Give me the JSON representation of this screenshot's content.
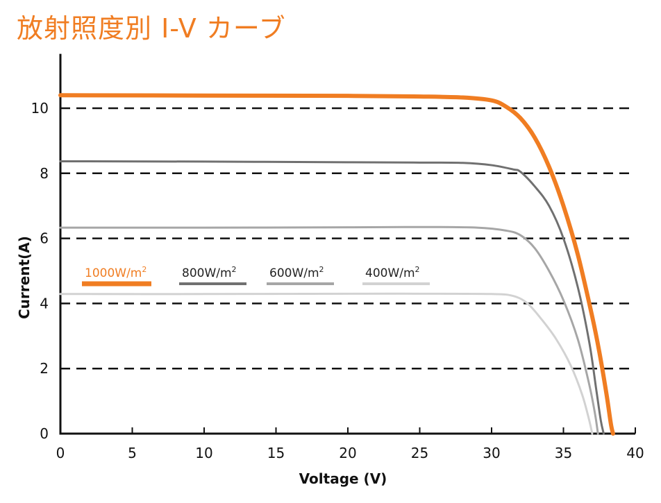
{
  "title": "放射照度別 I-V カーブ",
  "colors": {
    "accent": "#f07d22",
    "s800": "#707070",
    "s600": "#a6a6a6",
    "s400": "#d2d2d2",
    "grid": "#111111",
    "axis": "#111111"
  },
  "chart_data": {
    "type": "line",
    "title": "放射照度別 I-V カーブ",
    "xlabel": "Voltage  (V)",
    "ylabel": "Current(A)",
    "xlim": [
      0,
      40
    ],
    "ylim": [
      0,
      11.5
    ],
    "xticks": [
      "0",
      "5",
      "10",
      "15",
      "20",
      "25",
      "30",
      "35",
      "40"
    ],
    "yticks": [
      "0",
      "2",
      "4",
      "6",
      "8",
      "10"
    ],
    "grid": "horizontal-dashed",
    "legend_position": "left-middle",
    "series": [
      {
        "name": "1000W/m²",
        "color": "#f07d22",
        "points": [
          [
            0,
            10.4
          ],
          [
            10,
            10.39
          ],
          [
            20,
            10.38
          ],
          [
            25,
            10.36
          ],
          [
            28,
            10.33
          ],
          [
            30,
            10.24
          ],
          [
            31,
            10.05
          ],
          [
            32,
            9.7
          ],
          [
            33,
            9.1
          ],
          [
            34,
            8.2
          ],
          [
            35,
            7.0
          ],
          [
            36,
            5.5
          ],
          [
            37,
            3.6
          ],
          [
            37.5,
            2.5
          ],
          [
            38,
            1.2
          ],
          [
            38.3,
            0.3
          ],
          [
            38.45,
            0
          ]
        ]
      },
      {
        "name": "800W/m²",
        "color": "#707070",
        "points": [
          [
            0,
            8.37
          ],
          [
            10,
            8.36
          ],
          [
            20,
            8.34
          ],
          [
            25,
            8.33
          ],
          [
            28,
            8.32
          ],
          [
            30,
            8.25
          ],
          [
            31.5,
            8.12
          ],
          [
            32,
            8.05
          ],
          [
            33,
            7.6
          ],
          [
            34,
            7.0
          ],
          [
            35,
            6.0
          ],
          [
            36,
            4.5
          ],
          [
            36.8,
            2.8
          ],
          [
            37.3,
            1.3
          ],
          [
            37.6,
            0.4
          ],
          [
            37.8,
            0
          ]
        ]
      },
      {
        "name": "600W/m²",
        "color": "#a6a6a6",
        "points": [
          [
            0,
            6.33
          ],
          [
            10,
            6.33
          ],
          [
            20,
            6.34
          ],
          [
            25,
            6.35
          ],
          [
            29,
            6.33
          ],
          [
            31,
            6.24
          ],
          [
            32,
            6.1
          ],
          [
            33,
            5.7
          ],
          [
            34,
            5.0
          ],
          [
            35,
            4.1
          ],
          [
            36,
            2.9
          ],
          [
            36.8,
            1.5
          ],
          [
            37.2,
            0.6
          ],
          [
            37.4,
            0
          ]
        ]
      },
      {
        "name": "400W/m²",
        "color": "#d2d2d2",
        "points": [
          [
            0,
            4.29
          ],
          [
            10,
            4.29
          ],
          [
            20,
            4.3
          ],
          [
            25,
            4.3
          ],
          [
            30,
            4.29
          ],
          [
            31.5,
            4.23
          ],
          [
            32.5,
            4.0
          ],
          [
            33.5,
            3.5
          ],
          [
            34.5,
            2.9
          ],
          [
            35.5,
            2.1
          ],
          [
            36.3,
            1.2
          ],
          [
            36.8,
            0.4
          ],
          [
            37.0,
            0
          ]
        ]
      }
    ]
  },
  "legend": [
    {
      "label": "1000W/m",
      "sup": "2",
      "color": "#f07d22",
      "text_color": "#f07d22"
    },
    {
      "label": "800W/m",
      "sup": "2",
      "color": "#707070",
      "text_color": "#222222"
    },
    {
      "label": "600W/m",
      "sup": "2",
      "color": "#a6a6a6",
      "text_color": "#222222"
    },
    {
      "label": "400W/m",
      "sup": "2",
      "color": "#d2d2d2",
      "text_color": "#222222"
    }
  ]
}
